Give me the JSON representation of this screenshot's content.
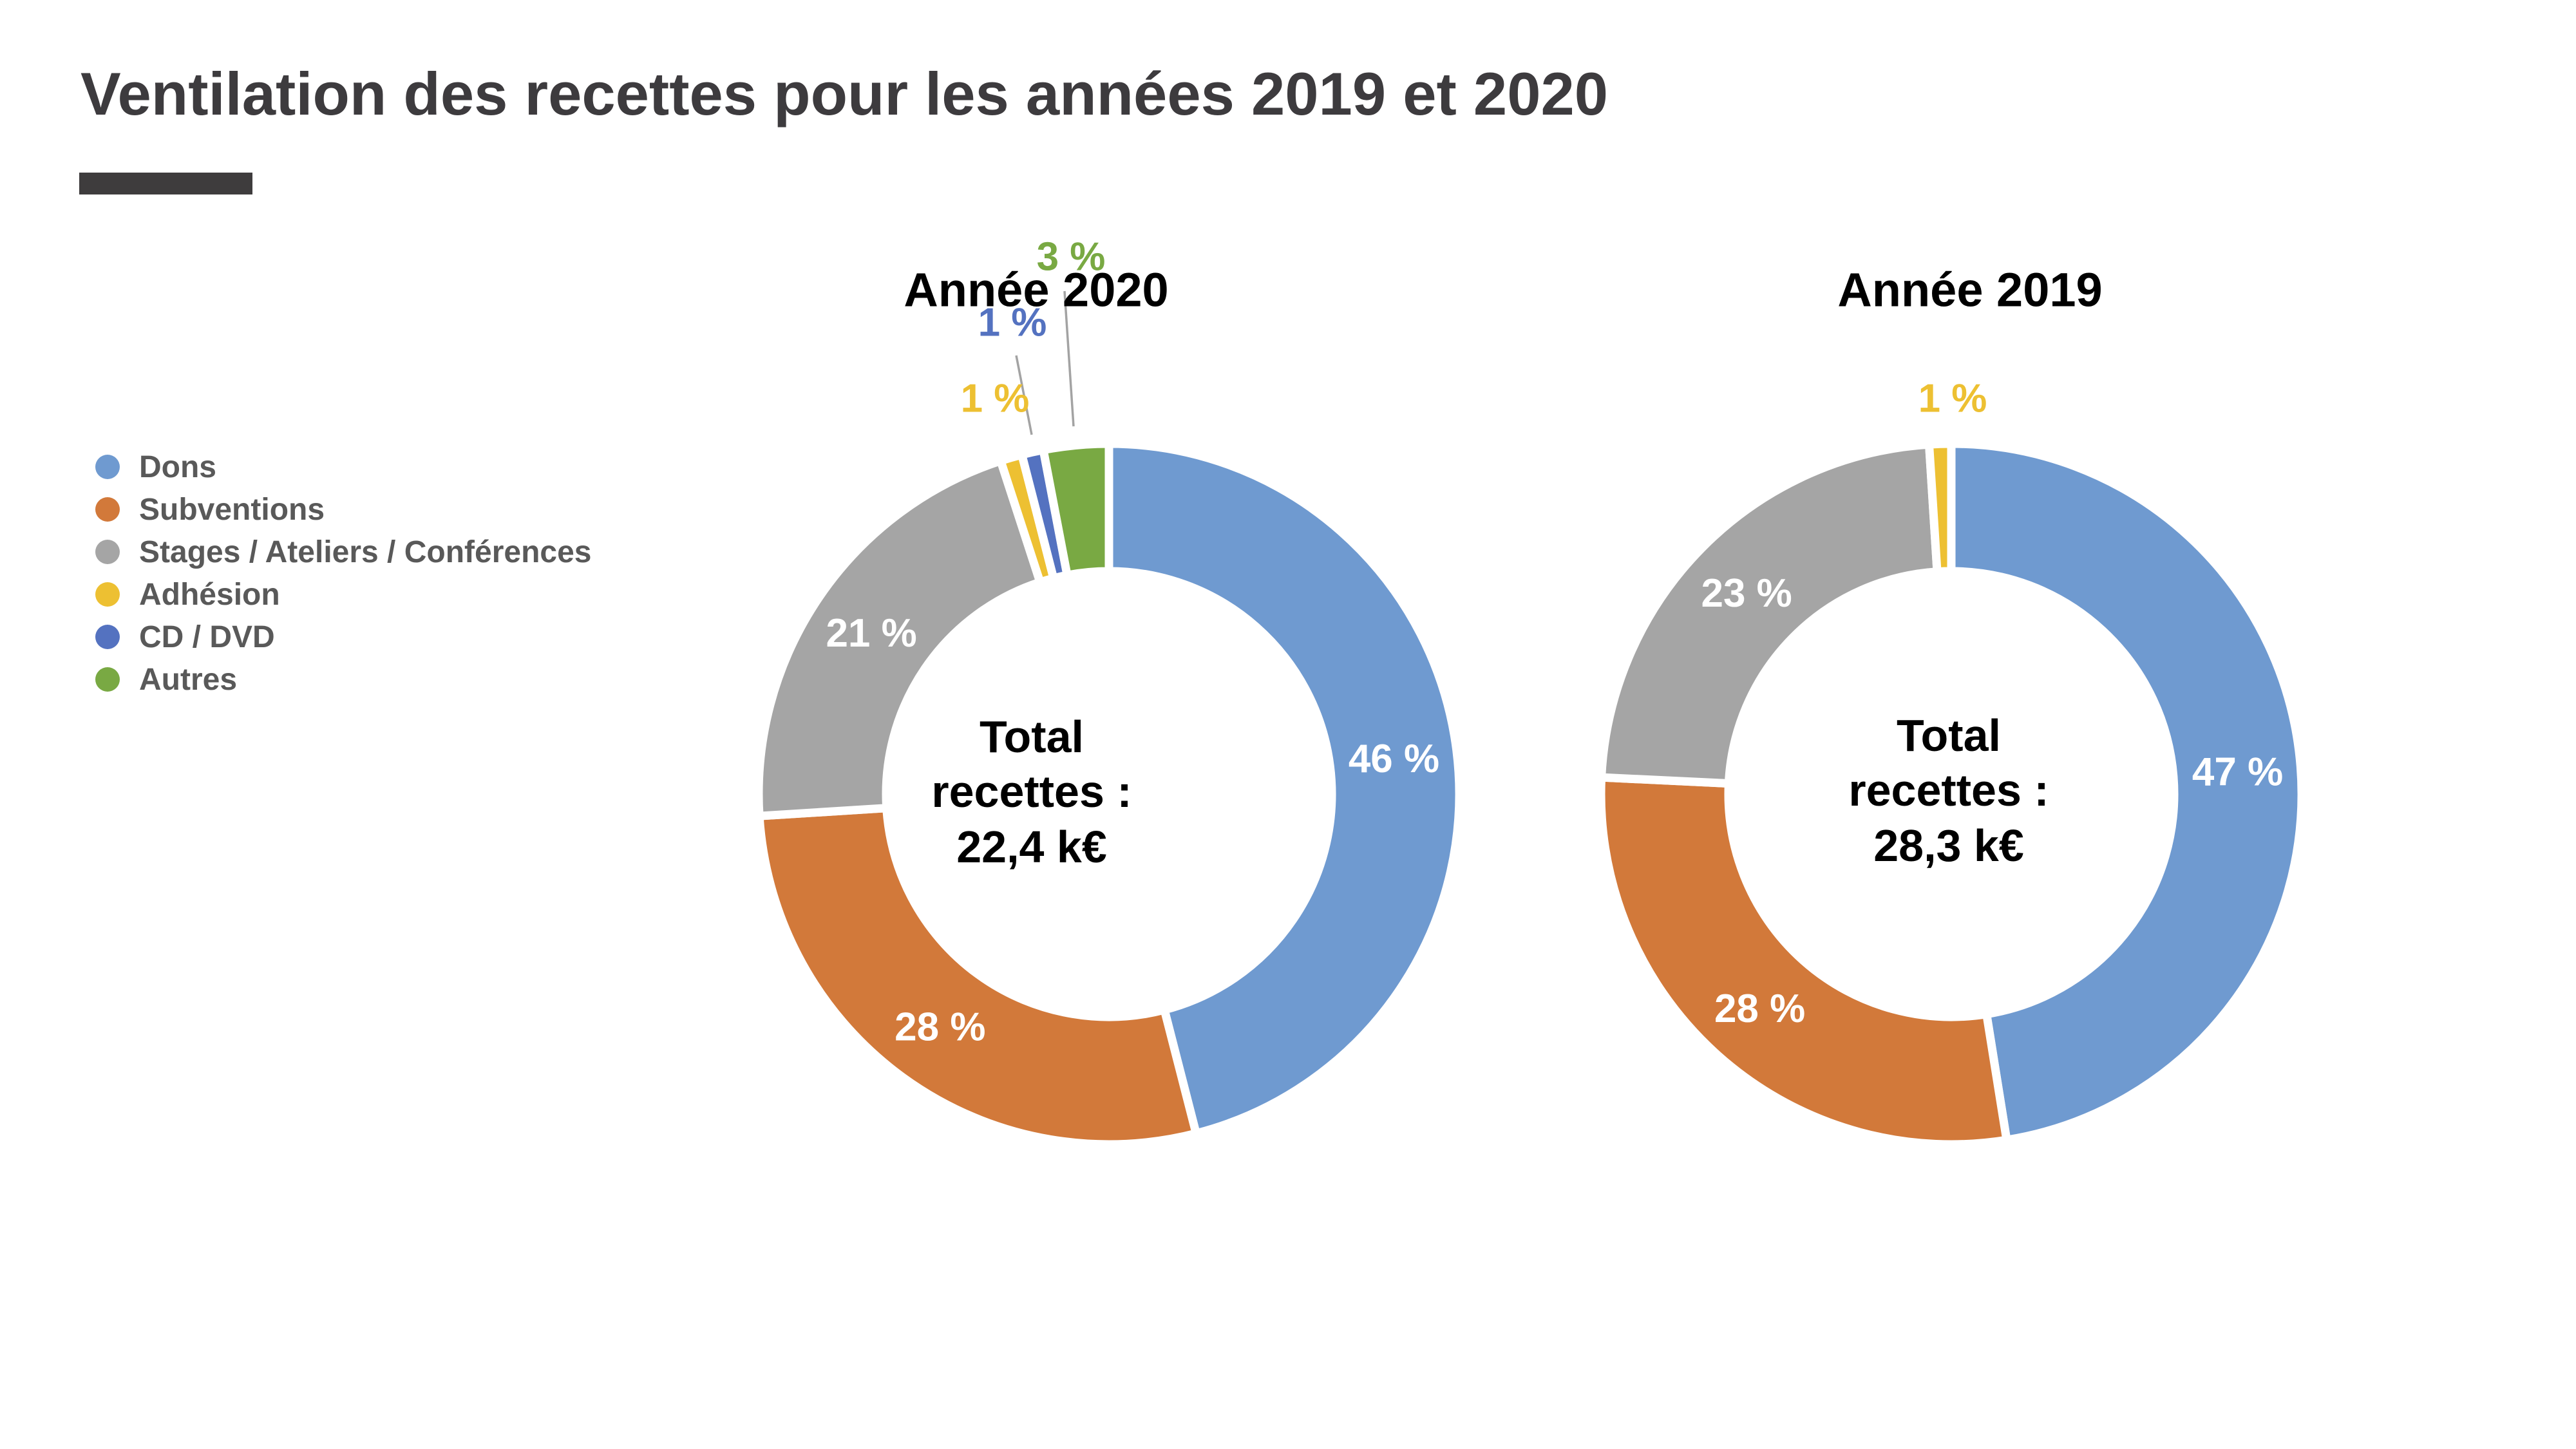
{
  "page_title": "Ventilation des recettes pour les années 2019 et 2020",
  "colors": {
    "Dons": "#6F9AD0",
    "Subventions": "#D2793A",
    "Stages / Ateliers / Conférences": "#A5A5A5",
    "Adhésion": "#EDC032",
    "CD / DVD": "#5472C0",
    "Autres": "#79A943"
  },
  "legend": {
    "items": [
      {
        "label": "Dons",
        "color_key": "Dons"
      },
      {
        "label": "Subventions",
        "color_key": "Subventions"
      },
      {
        "label": "Stages / Ateliers / Conférences",
        "color_key": "Stages / Ateliers / Conférences"
      },
      {
        "label": "Adhésion",
        "color_key": "Adhésion"
      },
      {
        "label": "CD / DVD",
        "color_key": "CD / DVD"
      },
      {
        "label": "Autres",
        "color_key": "Autres"
      }
    ]
  },
  "chart_data": [
    {
      "type": "pie",
      "subtype": "donut",
      "title": "Année 2020",
      "categories": [
        "Dons",
        "Subventions",
        "Stages / Ateliers / Conférences",
        "Adhésion",
        "CD / DVD",
        "Autres"
      ],
      "values_pct": [
        46,
        28,
        21,
        1,
        1,
        3
      ],
      "labels": [
        "46 %",
        "28 %",
        "21 %",
        "1 %",
        "1 %",
        "3 %"
      ],
      "center_lines": [
        "Total",
        "recettes :",
        "22,4 k€"
      ],
      "total_keur": 22.4,
      "legend_position": "left",
      "grid": false
    },
    {
      "type": "pie",
      "subtype": "donut",
      "title": "Année 2019",
      "categories": [
        "Dons",
        "Subventions",
        "Stages / Ateliers / Conférences",
        "Adhésion"
      ],
      "values_pct": [
        47,
        28,
        23,
        1
      ],
      "labels": [
        "47 %",
        "28 %",
        "23 %",
        "1 %"
      ],
      "center_lines": [
        "Total",
        "recettes :",
        "28,3 k€"
      ],
      "total_keur": 28.3,
      "legend_position": "left",
      "grid": false
    }
  ]
}
